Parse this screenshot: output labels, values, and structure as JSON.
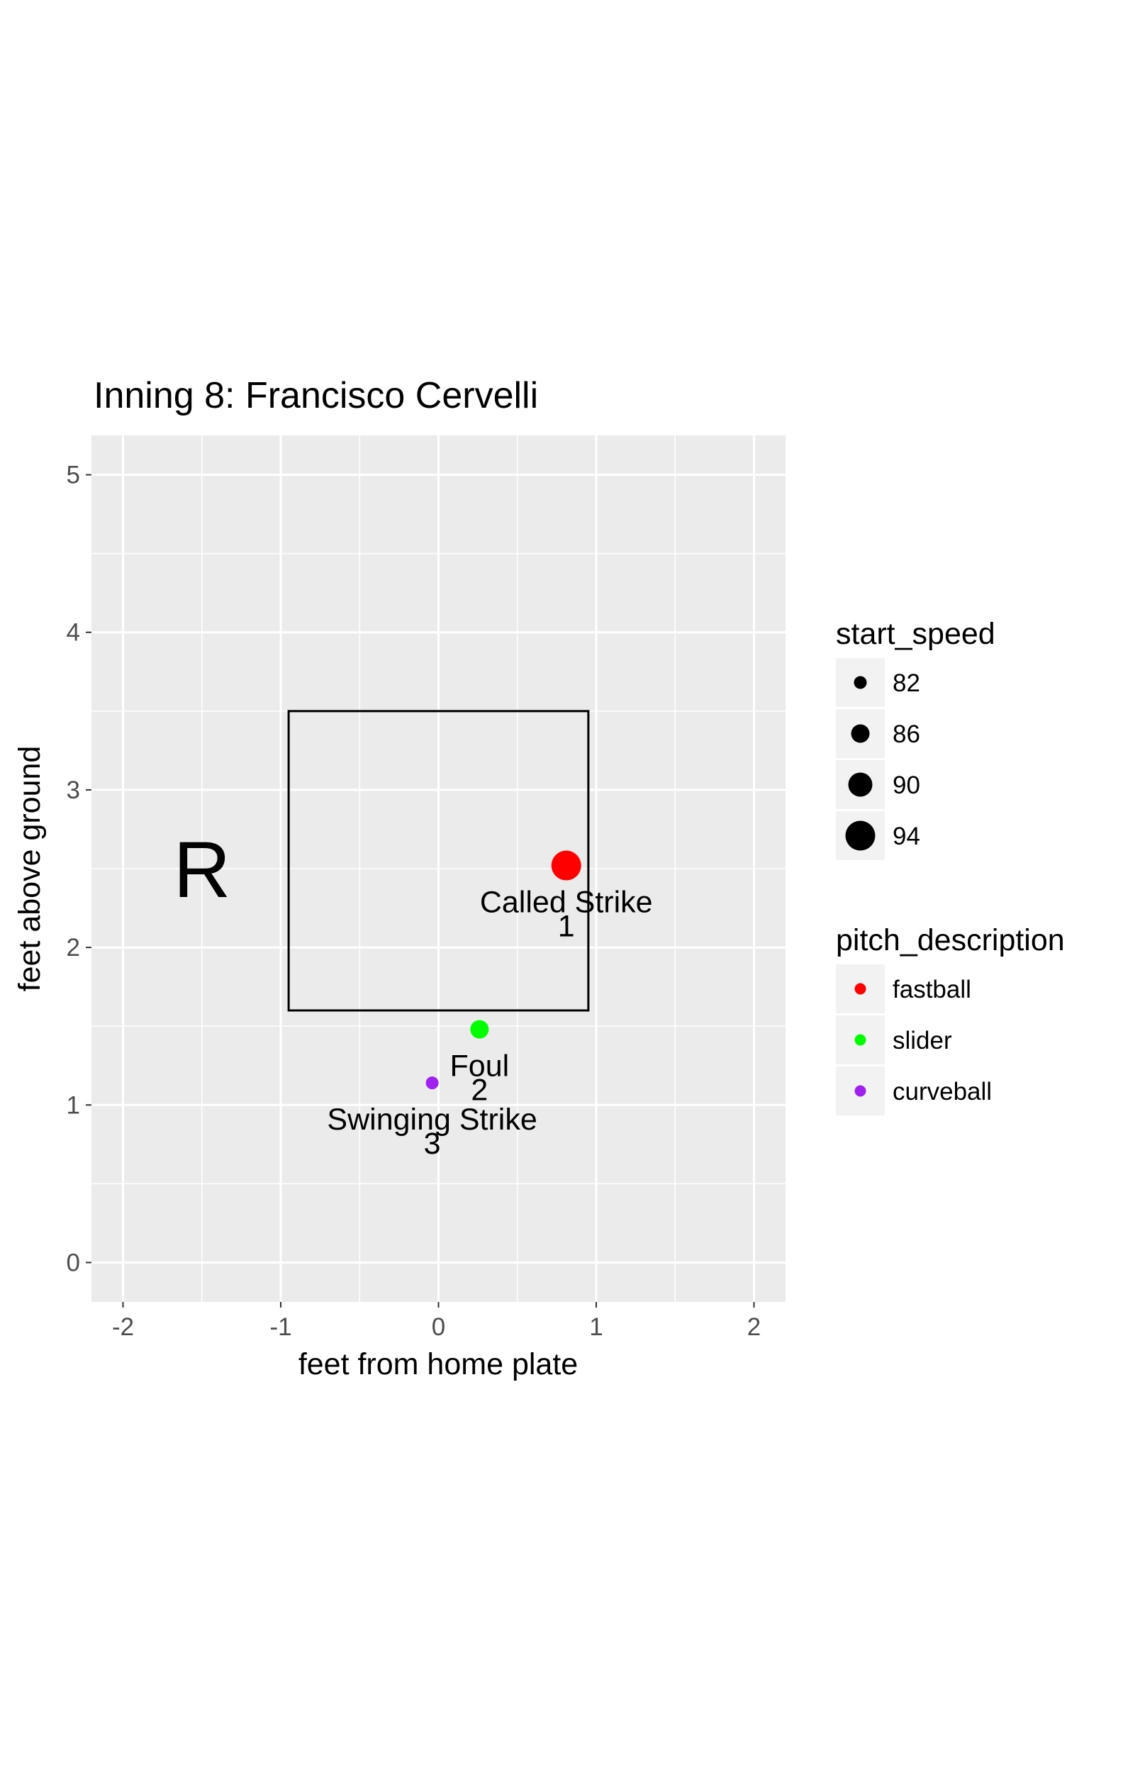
{
  "chart_data": {
    "type": "scatter",
    "title": "Inning 8: Francisco Cervelli",
    "xlabel": "feet from home plate",
    "ylabel": "feet above ground",
    "xlim": [
      -2.2,
      2.2
    ],
    "ylim": [
      -0.25,
      5.25
    ],
    "x_ticks": [
      -2,
      -1,
      0,
      1,
      2
    ],
    "x_tick_labels": [
      "-2",
      "-1",
      "0",
      "1",
      "2"
    ],
    "y_ticks": [
      0,
      1,
      2,
      3,
      4,
      5
    ],
    "y_tick_labels": [
      "0",
      "1",
      "2",
      "3",
      "4",
      "5"
    ],
    "grid": true,
    "panel_background": "#EBEBEB",
    "strike_zone": {
      "x": [
        -0.95,
        0.95
      ],
      "y": [
        1.6,
        3.5
      ]
    },
    "batter_stance": "R",
    "points": [
      {
        "x": 0.81,
        "y": 2.52,
        "speed": 94,
        "pitch_description": "fastball",
        "color": "#FF0000",
        "result": "Called Strike",
        "number": "1"
      },
      {
        "x": 0.26,
        "y": 1.48,
        "speed": 86,
        "pitch_description": "slider",
        "color": "#00FF00",
        "result": "Foul",
        "number": "2"
      },
      {
        "x": -0.04,
        "y": 1.14,
        "speed": 82,
        "pitch_description": "curveball",
        "color": "#A020F0",
        "result": "Swinging Strike",
        "number": "3"
      }
    ],
    "legend_placement": "right",
    "size_legend": {
      "title": "start_speed",
      "breaks": [
        82,
        86,
        90,
        94
      ],
      "labels": [
        "82",
        "86",
        "90",
        "94"
      ]
    },
    "color_legend": {
      "title": "pitch_description",
      "entries": [
        {
          "label": "fastball",
          "color": "#FF0000"
        },
        {
          "label": "slider",
          "color": "#00FF00"
        },
        {
          "label": "curveball",
          "color": "#A020F0"
        }
      ]
    }
  }
}
